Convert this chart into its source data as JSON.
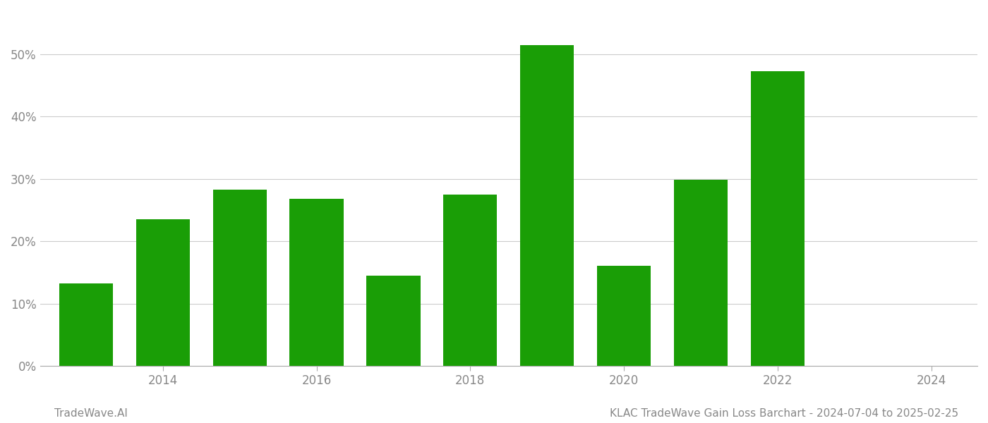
{
  "years": [
    2013,
    2014,
    2015,
    2016,
    2017,
    2018,
    2019,
    2020,
    2021,
    2022,
    2023
  ],
  "values": [
    0.133,
    0.235,
    0.283,
    0.268,
    0.145,
    0.275,
    0.515,
    0.161,
    0.299,
    0.473,
    0.0
  ],
  "bar_color": "#1a9e06",
  "background_color": "#ffffff",
  "grid_color": "#cccccc",
  "axis_label_color": "#888888",
  "title_text": "KLAC TradeWave Gain Loss Barchart - 2024-07-04 to 2025-02-25",
  "watermark_text": "TradeWave.AI",
  "ylim": [
    0,
    0.57
  ],
  "yticks": [
    0.0,
    0.1,
    0.2,
    0.3,
    0.4,
    0.5
  ],
  "bar_width": 0.7,
  "xlim_left": 2012.4,
  "xlim_right": 2024.6,
  "xticks": [
    2014,
    2016,
    2018,
    2020,
    2022,
    2024
  ],
  "figsize": [
    14.0,
    6.0
  ],
  "dpi": 100
}
